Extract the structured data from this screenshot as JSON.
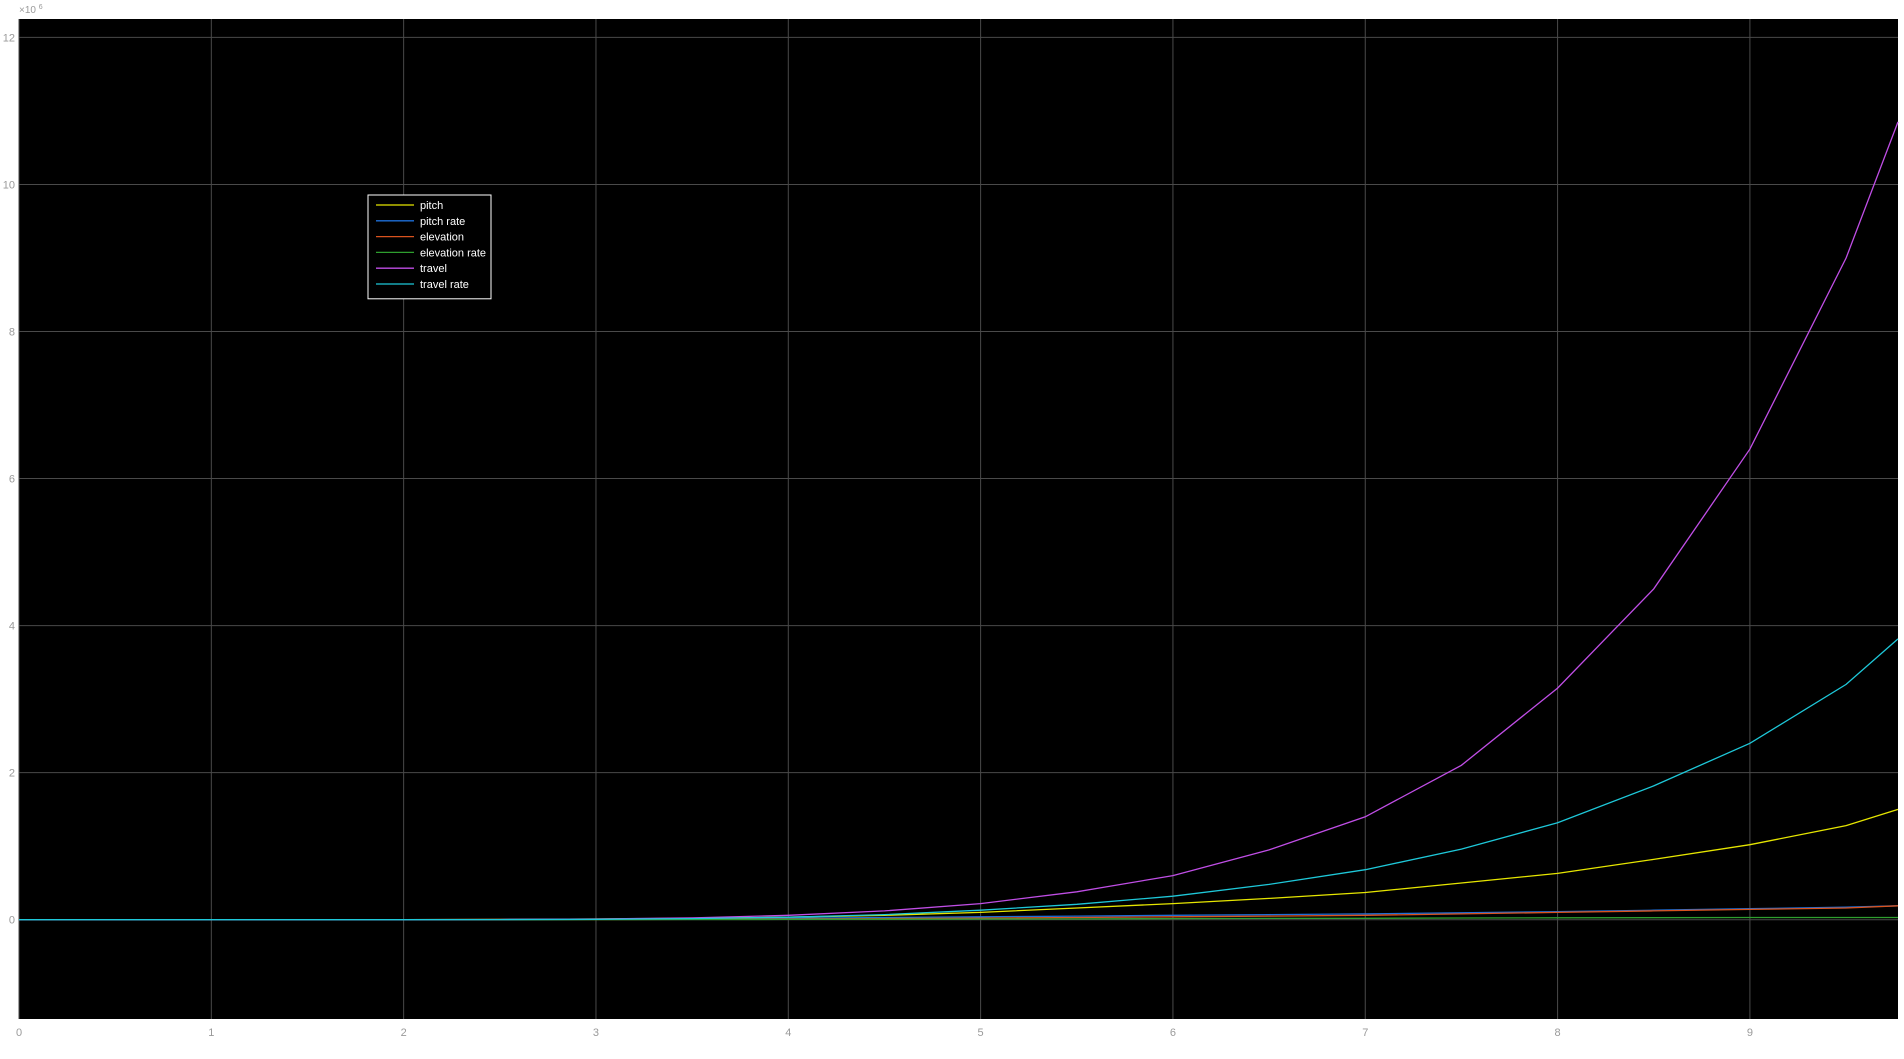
{
  "chart_data": {
    "type": "line",
    "title": "",
    "xlabel": "",
    "ylabel": "",
    "background": "#000000",
    "grid": true,
    "grid_color": "#4a4a4a",
    "legend_position": "upper-left",
    "xlim": [
      0,
      9.77
    ],
    "ylim": [
      -1.35,
      12.25
    ],
    "x_ticks": [
      0,
      1,
      2,
      3,
      4,
      5,
      6,
      7,
      8,
      9
    ],
    "x_tick_labels": [
      "0",
      "1",
      "2",
      "3",
      "4",
      "5",
      "6",
      "7",
      "8",
      "9"
    ],
    "y_ticks": [
      0,
      2,
      4,
      6,
      8,
      10,
      12
    ],
    "y_tick_labels": [
      "0",
      "2",
      "4",
      "6",
      "8",
      "10",
      "12"
    ],
    "y_exponent_base": "×10",
    "y_exponent_power": "6",
    "x": [
      0,
      0.5,
      1,
      1.5,
      2,
      2.5,
      3,
      3.5,
      4,
      4.5,
      5,
      5.5,
      6,
      6.5,
      7,
      7.5,
      8,
      8.5,
      9,
      9.5,
      9.77
    ],
    "series": [
      {
        "name": "pitch",
        "color": "#e6e600",
        "values": [
          0,
          0,
          0,
          0,
          0,
          0.004,
          0.01,
          0.02,
          0.035,
          0.06,
          0.1,
          0.16,
          0.22,
          0.29,
          0.37,
          0.5,
          0.63,
          0.82,
          1.02,
          1.28,
          1.5
        ]
      },
      {
        "name": "pitch rate",
        "color": "#1e6fd9",
        "values": [
          0,
          0,
          0,
          0,
          0,
          0.002,
          0.005,
          0.01,
          0.02,
          0.03,
          0.04,
          0.05,
          0.06,
          0.07,
          0.08,
          0.095,
          0.11,
          0.13,
          0.15,
          0.17,
          0.19
        ]
      },
      {
        "name": "elevation",
        "color": "#d9531e",
        "values": [
          0,
          0,
          0,
          0,
          0,
          0.001,
          0.003,
          0.006,
          0.01,
          0.015,
          0.022,
          0.03,
          0.04,
          0.05,
          0.06,
          0.08,
          0.1,
          0.12,
          0.14,
          0.16,
          0.19
        ]
      },
      {
        "name": "elevation rate",
        "color": "#2e9e2e",
        "values": [
          0,
          0,
          0,
          0,
          0,
          0.001,
          0.002,
          0.003,
          0.005,
          0.007,
          0.01,
          0.012,
          0.015,
          0.018,
          0.02,
          0.023,
          0.026,
          0.028,
          0.03,
          0.03,
          0.03
        ]
      },
      {
        "name": "travel",
        "color": "#c04ee6",
        "values": [
          0,
          0,
          0,
          0,
          0,
          0.003,
          0.01,
          0.025,
          0.06,
          0.12,
          0.22,
          0.38,
          0.6,
          0.95,
          1.4,
          2.1,
          3.15,
          4.5,
          6.4,
          9.0,
          10.85
        ]
      },
      {
        "name": "travel rate",
        "color": "#1ec8d9",
        "values": [
          0,
          0,
          0,
          0,
          0,
          0.002,
          0.006,
          0.015,
          0.035,
          0.07,
          0.13,
          0.21,
          0.32,
          0.48,
          0.68,
          0.96,
          1.32,
          1.82,
          2.4,
          3.2,
          3.82
        ]
      }
    ]
  }
}
